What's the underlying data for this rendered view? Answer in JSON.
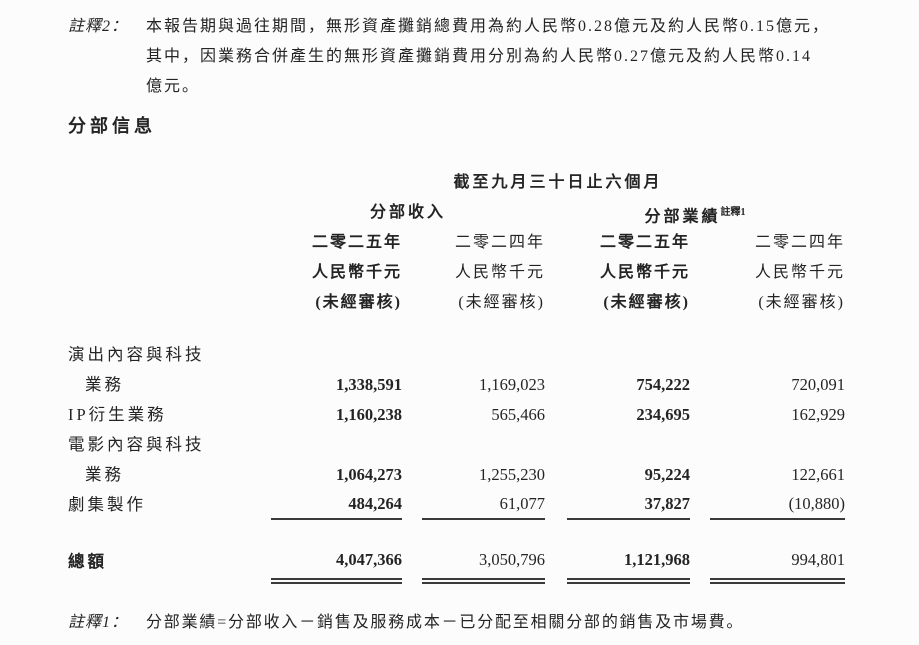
{
  "page": {
    "bg": "#fcfcfc",
    "ink": "#242424",
    "rule_color": "#3a3a3a"
  },
  "note_top": {
    "label": "註釋2：",
    "lines": [
      "本報告期與過往期間，無形資產攤銷總費用為約人民幣0.28億元及約人民幣0.15億元，",
      "其中，因業務合併產生的無形資產攤銷費用分別為約人民幣0.27億元及約人民幣0.14",
      "億元。"
    ]
  },
  "section_title": "分部信息",
  "table": {
    "period_header": "截至九月三十日止六個月",
    "group_headers": [
      {
        "label": "分部收入",
        "sup": ""
      },
      {
        "label": "分部業績",
        "sup": "註釋1"
      }
    ],
    "column_headers": [
      {
        "year": "二零二五年",
        "unit": "人民幣千元",
        "status": "(未經審核)"
      },
      {
        "year": "二零二四年",
        "unit": "人民幣千元",
        "status": "(未經審核)"
      },
      {
        "year": "二零二五年",
        "unit": "人民幣千元",
        "status": "(未經審核)"
      },
      {
        "year": "二零二四年",
        "unit": "人民幣千元",
        "status": "(未經審核)"
      }
    ],
    "rows": [
      {
        "label1": "演出內容與科技",
        "label2": "業務",
        "v1": "1,338,591",
        "v2": "1,169,023",
        "v3": "754,222",
        "v4": "720,091"
      },
      {
        "label1": "IP衍生業務",
        "label2": "",
        "v1": "1,160,238",
        "v2": "565,466",
        "v3": "234,695",
        "v4": "162,929"
      },
      {
        "label1": "電影內容與科技",
        "label2": "業務",
        "v1": "1,064,273",
        "v2": "1,255,230",
        "v3": "95,224",
        "v4": "122,661"
      },
      {
        "label1": "劇集製作",
        "label2": "",
        "v1": "484,264",
        "v2": "61,077",
        "v3": "37,827",
        "v4": "(10,880)"
      }
    ],
    "total": {
      "label": "總額",
      "v1": "4,047,366",
      "v2": "3,050,796",
      "v3": "1,121,968",
      "v4": "994,801"
    }
  },
  "note_bottom": {
    "label": "註釋1：",
    "text": "分部業績=分部收入－銷售及服務成本－已分配至相關分部的銷售及市場費。"
  }
}
